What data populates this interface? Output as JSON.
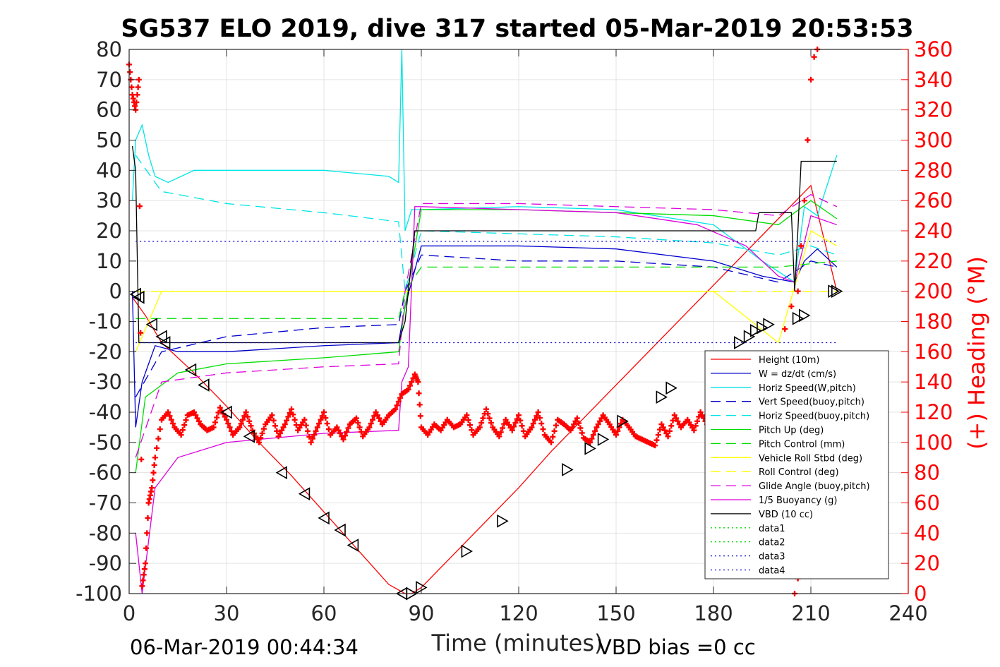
{
  "chart_data": {
    "type": "line",
    "title": "SG537 ELO 2019, dive 317 started 05-Mar-2019 20:53:53",
    "xlabel": "Time (minutes)",
    "ylabel_right": "(+) Heading (°M)",
    "footer_left": "06-Mar-2019 00:44:34",
    "footer_right": "VBD bias =0 cc",
    "xlim": [
      0,
      240
    ],
    "ylim": [
      -100,
      80
    ],
    "ylim_right": [
      0,
      360
    ],
    "xticks": [
      0,
      30,
      60,
      90,
      120,
      150,
      180,
      210,
      240
    ],
    "yticks": [
      -100,
      -90,
      -80,
      -70,
      -60,
      -50,
      -40,
      -30,
      -20,
      -10,
      0,
      10,
      20,
      30,
      40,
      50,
      60,
      70,
      80
    ],
    "yticks_right": [
      0,
      20,
      40,
      60,
      80,
      100,
      120,
      140,
      160,
      180,
      200,
      220,
      240,
      260,
      280,
      300,
      320,
      340,
      360
    ],
    "grid": true,
    "legend_position": "lower-right",
    "colors": {
      "height": "#ff0000",
      "w": "#0000cc",
      "horiz_speed_w": "#00e5e5",
      "vert_speed_buoy": "#0000cc",
      "horiz_speed_buoy": "#00e5e5",
      "pitch_up": "#00dd00",
      "pitch_control": "#00dd00",
      "roll": "#ffff00",
      "roll_control": "#ffff00",
      "glide_angle": "#dd00dd",
      "buoyancy": "#dd00dd",
      "vbd": "#000000",
      "heading": "#ff0000",
      "axis_right": "#ff0000"
    },
    "series": [
      {
        "name": "Height (10m)",
        "style": "solid",
        "color": "#ff0000",
        "x": [
          1,
          5,
          10,
          20,
          30,
          40,
          50,
          60,
          70,
          80,
          85,
          87,
          90,
          100,
          110,
          120,
          130,
          140,
          150,
          160,
          170,
          180,
          190,
          200,
          210,
          218
        ],
        "y": [
          -2,
          -8,
          -17,
          -27,
          -38,
          -50,
          -61,
          -73,
          -85,
          -97,
          -100,
          -100,
          -98,
          -87,
          -76,
          -65,
          -53,
          -42,
          -31,
          -20,
          -9,
          2,
          13,
          24,
          35,
          0
        ]
      },
      {
        "name": "W = dz/dt (cm/s)",
        "style": "solid",
        "color": "#0000cc",
        "x": [
          1,
          2,
          4,
          8,
          15,
          30,
          60,
          83,
          85,
          90,
          120,
          150,
          180,
          195,
          205,
          208,
          212,
          218
        ],
        "y": [
          0,
          -45,
          -30,
          -18,
          -20,
          -20,
          -18,
          -17,
          -5,
          15,
          15,
          14,
          10,
          5,
          3,
          10,
          14,
          8
        ]
      },
      {
        "name": "Horiz Speed(W,pitch)",
        "style": "solid",
        "color": "#00e5e5",
        "x": [
          1,
          2,
          4,
          6,
          8,
          12,
          20,
          30,
          60,
          80,
          83,
          84,
          85,
          87,
          90,
          120,
          150,
          180,
          195,
          205,
          208,
          212,
          218
        ],
        "y": [
          30,
          50,
          55,
          45,
          38,
          36,
          40,
          40,
          40,
          38,
          36,
          80,
          20,
          27,
          27,
          28,
          27,
          22,
          10,
          3,
          28,
          25,
          45
        ]
      },
      {
        "name": "Vert Speed(buoy,pitch)",
        "style": "dashed",
        "color": "#0000cc",
        "x": [
          2,
          10,
          30,
          60,
          83,
          85,
          90,
          120,
          150,
          180,
          200,
          210,
          218
        ],
        "y": [
          -35,
          -20,
          -15,
          -12,
          -11,
          0,
          12,
          10,
          10,
          8,
          3,
          10,
          8
        ]
      },
      {
        "name": "Horiz Speed(buoy,pitch)",
        "style": "dashed",
        "color": "#00e5e5",
        "x": [
          2,
          10,
          30,
          60,
          83,
          85,
          90,
          120,
          150,
          180,
          200,
          210,
          218
        ],
        "y": [
          45,
          33,
          29,
          26,
          23,
          0,
          20,
          19,
          18,
          16,
          12,
          15,
          12
        ]
      },
      {
        "name": "Pitch Up (deg)",
        "style": "solid",
        "color": "#00dd00",
        "x": [
          2,
          5,
          15,
          30,
          60,
          83,
          85,
          90,
          120,
          150,
          180,
          200,
          210,
          218
        ],
        "y": [
          -60,
          -35,
          -27,
          -24,
          -22,
          -20,
          -5,
          27,
          27,
          26,
          25,
          22,
          30,
          24
        ]
      },
      {
        "name": "Pitch Control (mm)",
        "style": "dashed",
        "color": "#00dd00",
        "x": [
          2,
          83,
          85,
          90,
          200,
          218
        ],
        "y": [
          -9,
          -9,
          0,
          8,
          8,
          10
        ]
      },
      {
        "name": "Vehicle Roll Stbd (deg)",
        "style": "solid",
        "color": "#ffff00",
        "x": [
          2,
          10,
          30,
          60,
          83,
          85,
          90,
          120,
          150,
          180,
          200,
          210,
          218
        ],
        "y": [
          -20,
          0,
          0,
          0,
          0,
          0,
          0,
          0,
          0,
          0,
          -17,
          20,
          15
        ]
      },
      {
        "name": "Roll Control (deg)",
        "style": "dashed",
        "color": "#ffff00",
        "x": [
          2,
          83,
          85,
          218
        ],
        "y": [
          0,
          0,
          0,
          0
        ]
      },
      {
        "name": "Glide Angle (buoy,pitch)",
        "style": "dashed",
        "color": "#dd00dd",
        "x": [
          2,
          10,
          30,
          60,
          83,
          85,
          90,
          120,
          150,
          180,
          200,
          210,
          218
        ],
        "y": [
          -55,
          -30,
          -27,
          -25,
          -24,
          0,
          29,
          29,
          28,
          27,
          25,
          32,
          28
        ]
      },
      {
        "name": "1/5 Buoyancy (g)",
        "style": "solid",
        "color": "#dd00dd",
        "x": [
          2,
          4,
          8,
          15,
          30,
          60,
          83,
          84,
          86,
          88,
          90,
          120,
          150,
          175,
          190,
          200,
          205,
          210,
          218
        ],
        "y": [
          -80,
          -100,
          -65,
          -55,
          -50,
          -47,
          -46,
          -30,
          -25,
          28,
          28,
          27,
          26,
          22,
          15,
          5,
          3,
          25,
          22
        ]
      },
      {
        "name": "VBD (10 cc)",
        "style": "solid",
        "color": "#000000",
        "x": [
          1,
          2,
          3,
          83,
          85,
          88,
          189,
          190,
          193,
          194,
          204,
          205,
          206,
          207,
          208,
          209,
          218
        ],
        "y": [
          48,
          40,
          -17,
          -17,
          -10,
          20,
          20,
          20,
          20,
          26,
          26,
          0,
          20,
          43,
          43,
          43,
          43
        ]
      },
      {
        "name": "data1",
        "style": "dotted",
        "color": "#00dd00",
        "x": [],
        "y": []
      },
      {
        "name": "data2",
        "style": "dotted",
        "color": "#00dd00",
        "x": [],
        "y": []
      },
      {
        "name": "data3",
        "style": "dotted",
        "color": "#0000cc",
        "x": [
          2,
          218
        ],
        "y": [
          16.5,
          16.5
        ]
      },
      {
        "name": "data4",
        "style": "dotted",
        "color": "#0000cc",
        "x": [
          2,
          218
        ],
        "y": [
          -17,
          -17
        ]
      }
    ],
    "heading": {
      "name": "(+) Heading (°M)",
      "axis": "right",
      "color": "#ff0000",
      "marker": "+",
      "x": [
        0,
        1,
        2,
        3,
        4,
        5,
        6,
        7,
        8,
        10,
        12,
        14,
        16,
        18,
        20,
        22,
        24,
        26,
        28,
        30,
        32,
        34,
        36,
        38,
        40,
        42,
        44,
        46,
        48,
        50,
        52,
        54,
        56,
        58,
        60,
        62,
        64,
        66,
        68,
        70,
        72,
        74,
        76,
        78,
        80,
        82,
        84,
        86,
        88,
        89,
        90,
        92,
        94,
        96,
        98,
        100,
        102,
        104,
        106,
        108,
        110,
        112,
        114,
        116,
        118,
        120,
        122,
        124,
        126,
        128,
        130,
        132,
        134,
        136,
        138,
        140,
        142,
        144,
        146,
        148,
        150,
        152,
        154,
        156,
        158,
        160,
        162,
        164,
        166,
        168,
        170,
        172,
        174,
        176,
        178,
        180
      ],
      "y": [
        350,
        330,
        320,
        340,
        5,
        20,
        60,
        70,
        90,
        115,
        120,
        110,
        105,
        118,
        120,
        112,
        108,
        110,
        123,
        115,
        105,
        110,
        120,
        108,
        100,
        112,
        118,
        104,
        112,
        122,
        108,
        115,
        100,
        110,
        120,
        105,
        110,
        102,
        112,
        116,
        104,
        110,
        120,
        112,
        118,
        122,
        132,
        135,
        145,
        140,
        110,
        105,
        112,
        108,
        115,
        110,
        112,
        118,
        105,
        110,
        122,
        110,
        104,
        115,
        108,
        118,
        104,
        110,
        120,
        105,
        100,
        115,
        112,
        108,
        116,
        103,
        100,
        110,
        118,
        112,
        105,
        115,
        110,
        104,
        102,
        100,
        98,
        112,
        104,
        118,
        110,
        115,
        108,
        120,
        112,
        118
      ],
      "x2": [
        200,
        202,
        204,
        206,
        207,
        208,
        209,
        210,
        211,
        212,
        205,
        206,
        207,
        208,
        209
      ],
      "y2": [
        150,
        175,
        190,
        200,
        230,
        260,
        300,
        340,
        355,
        360,
        0,
        10,
        30,
        40,
        50
      ]
    },
    "depth_markers": {
      "marker": "triangle",
      "x": [
        2,
        3,
        7,
        10,
        11,
        19,
        23,
        30,
        37,
        47,
        54,
        60,
        65,
        69,
        84,
        87,
        90,
        104,
        115,
        135,
        142,
        146,
        152,
        164,
        167,
        188,
        191,
        193,
        195,
        197,
        206,
        208,
        217,
        218
      ],
      "y": [
        -1,
        -2,
        -11,
        -15,
        -17,
        -26,
        -31,
        -40,
        -48,
        -60,
        -67,
        -75,
        -79,
        -84,
        -100,
        -100,
        -98,
        -86,
        -76,
        -59,
        -52,
        -49,
        -43,
        -35,
        -32,
        -17,
        -15,
        -13,
        -12,
        -11,
        -9,
        -8,
        0,
        0
      ]
    }
  }
}
